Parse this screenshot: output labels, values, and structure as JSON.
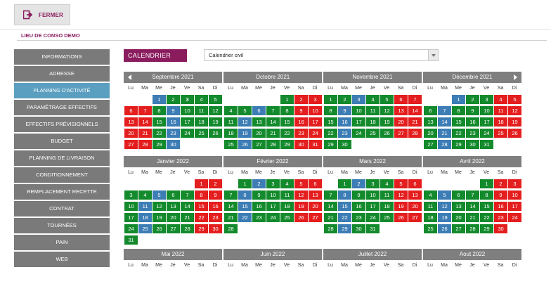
{
  "toolbar": {
    "close_label": "FERMER"
  },
  "location": {
    "title": "LIEU DE CONSO DEMO"
  },
  "sidebar": {
    "items": [
      {
        "label": "INFORMATIONS",
        "active": false
      },
      {
        "label": "ADRESSE",
        "active": false
      },
      {
        "label": "PLANNING D'ACTIVITÉ",
        "active": true
      },
      {
        "label": "PARAMÉTRAGE EFFECTIFS",
        "active": false
      },
      {
        "label": "EFFECTIFS PRÉVISIONNELS",
        "active": false
      },
      {
        "label": "BUDGET",
        "active": false
      },
      {
        "label": "PLANNING DE LIVRAISON",
        "active": false
      },
      {
        "label": "CONDITIONNEMENT",
        "active": false
      },
      {
        "label": "REMPLACEMENT RECETTE",
        "active": false
      },
      {
        "label": "CONTRAT",
        "active": false
      },
      {
        "label": "TOURNÉES",
        "active": false
      },
      {
        "label": "PAIN",
        "active": false
      },
      {
        "label": "WEB",
        "active": false
      }
    ]
  },
  "calendar": {
    "header": "CALENDRIER",
    "select_value": "Calendrier civil",
    "weekdays": [
      "Lu",
      "Ma",
      "Me",
      "Je",
      "Ve",
      "Sa",
      "Di"
    ],
    "colors": {
      "green": "#138a2c",
      "blue": "#3d7db5",
      "red": "#e41e1e"
    },
    "months": [
      {
        "title": "Septembre 2021",
        "offset": 2,
        "days": 30,
        "colors": "bggggrrgbgggrrgbgggrrgbgggrrgb",
        "bold": [
          3
        ]
      },
      {
        "title": "Octobre 2021",
        "offset": 4,
        "days": 31,
        "colors": "grrggbggrrgbgggrrgbgggrrgbgggrr"
      },
      {
        "title": "Novembre 2021",
        "offset": 0,
        "days": 30,
        "colors": "ggbggrrgbgggrrgbgggrrgbgggrrgg"
      },
      {
        "title": "Décembre 2021",
        "offset": 2,
        "days": 31,
        "colors": "bggrrgbgggrrgbgggrrgbgggrrgbggg"
      },
      {
        "title": "Janvier 2022",
        "offset": 5,
        "days": 31,
        "colors": "rrggbggrrgbgggrrgbgggrrgbgggrrg"
      },
      {
        "title": "Février 2022",
        "offset": 1,
        "days": 28,
        "colors": "gbggrrgbgggrrgbgggrrgbgggrrg"
      },
      {
        "title": "Mars 2022",
        "offset": 1,
        "days": 31,
        "colors": "gbggrrgbgggrrgbgggrrgbgggrrgbgg"
      },
      {
        "title": "Avril 2022",
        "offset": 4,
        "days": 30,
        "colors": "grrgbgggrrgbgggrrgbgggrrgbgggr"
      },
      {
        "title": "Mai 2022",
        "offset": 6,
        "days": 0,
        "colors": ""
      },
      {
        "title": "Juin 2022",
        "offset": 2,
        "days": 0,
        "colors": ""
      },
      {
        "title": "Juillet 2022",
        "offset": 4,
        "days": 0,
        "colors": ""
      },
      {
        "title": "Aout 2022",
        "offset": 0,
        "days": 0,
        "colors": ""
      }
    ]
  }
}
